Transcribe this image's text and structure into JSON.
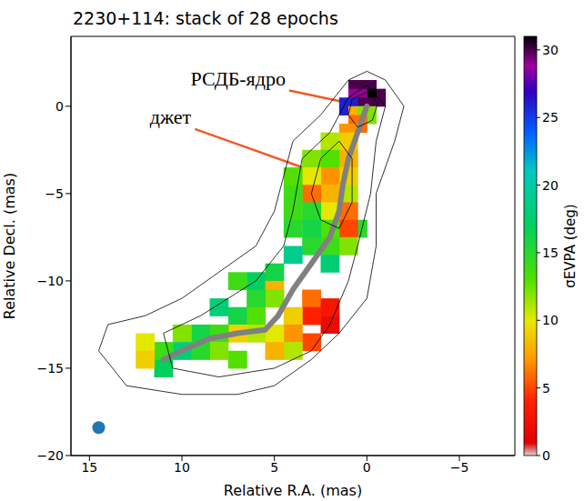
{
  "chart_data": {
    "type": "map",
    "title": "2230+114: stack of 28 epochs",
    "x_label": "Relative R.A. (mas)",
    "y_label": "Relative Decl. (mas)",
    "xlim": [
      16,
      -8
    ],
    "xticks": [
      15,
      10,
      5,
      0,
      {
        "value": -5,
        "label": "−5"
      }
    ],
    "ylim": [
      -20,
      4
    ],
    "yticks": [
      {
        "value": -20,
        "label": "−20"
      },
      {
        "value": -15,
        "label": "−15"
      },
      {
        "value": -10,
        "label": "−10"
      },
      {
        "value": -5,
        "label": "−5"
      },
      0
    ],
    "colorbar": {
      "label": "σEVPA (deg)",
      "range": [
        0,
        31
      ],
      "ticks": [
        0,
        5,
        10,
        15,
        20,
        25,
        30
      ]
    },
    "cell_size": 1,
    "cells": [
      {
        "x": 0,
        "y": 1,
        "value": 30
      },
      {
        "x": 0.5,
        "y": 1,
        "value": 30
      },
      {
        "x": -0.5,
        "y": 0.5,
        "value": 30
      },
      {
        "x": 0,
        "y": 0.5,
        "value": 31
      },
      {
        "x": 0.5,
        "y": 0.5,
        "value": 29
      },
      {
        "x": 0,
        "y": 0,
        "value": 30
      },
      {
        "x": 1,
        "y": 0,
        "value": 26
      },
      {
        "x": 0.5,
        "y": -0.5,
        "value": 8
      },
      {
        "x": 0,
        "y": -0.5,
        "value": 12
      },
      {
        "x": 0.5,
        "y": -1,
        "value": 6
      },
      {
        "x": 1,
        "y": -1.5,
        "value": 7
      },
      {
        "x": 1,
        "y": -2,
        "value": 9
      },
      {
        "x": 2,
        "y": -2,
        "value": 11
      },
      {
        "x": 1,
        "y": -3,
        "value": 8
      },
      {
        "x": 2,
        "y": -3,
        "value": 13
      },
      {
        "x": 3,
        "y": -3,
        "value": 12
      },
      {
        "x": 1,
        "y": -4,
        "value": 9
      },
      {
        "x": 2,
        "y": -4,
        "value": 7
      },
      {
        "x": 3,
        "y": -4,
        "value": 10
      },
      {
        "x": 4,
        "y": -4,
        "value": 13
      },
      {
        "x": 1,
        "y": -5,
        "value": 11
      },
      {
        "x": 2,
        "y": -5,
        "value": 8
      },
      {
        "x": 3,
        "y": -5,
        "value": 6
      },
      {
        "x": 4,
        "y": -5,
        "value": 14
      },
      {
        "x": 1,
        "y": -6,
        "value": 6
      },
      {
        "x": 2,
        "y": -6,
        "value": 10
      },
      {
        "x": 3,
        "y": -6,
        "value": 15
      },
      {
        "x": 4,
        "y": -6,
        "value": 14
      },
      {
        "x": 0.5,
        "y": -7,
        "value": 15
      },
      {
        "x": 1,
        "y": -7,
        "value": 5
      },
      {
        "x": 2,
        "y": -7,
        "value": 13
      },
      {
        "x": 3,
        "y": -7,
        "value": 16
      },
      {
        "x": 4,
        "y": -7,
        "value": 15
      },
      {
        "x": 1,
        "y": -8,
        "value": 12
      },
      {
        "x": 2,
        "y": -8,
        "value": 14
      },
      {
        "x": 3,
        "y": -8,
        "value": 15
      },
      {
        "x": 2,
        "y": -9,
        "value": 18
      },
      {
        "x": 4,
        "y": -8.5,
        "value": 19
      },
      {
        "x": 5,
        "y": -9.5,
        "value": 16
      },
      {
        "x": 6,
        "y": -10,
        "value": 17
      },
      {
        "x": 7,
        "y": -10,
        "value": 14
      },
      {
        "x": 5,
        "y": -10.5,
        "value": 8
      },
      {
        "x": 3,
        "y": -11,
        "value": 6
      },
      {
        "x": 2,
        "y": -11.5,
        "value": 3
      },
      {
        "x": 2,
        "y": -12.5,
        "value": 2
      },
      {
        "x": 3,
        "y": -12,
        "value": 4
      },
      {
        "x": 4,
        "y": -12,
        "value": 9
      },
      {
        "x": 5,
        "y": -11,
        "value": 12
      },
      {
        "x": 6,
        "y": -11,
        "value": 15
      },
      {
        "x": 6,
        "y": -12,
        "value": 13
      },
      {
        "x": 7,
        "y": -12,
        "value": 16
      },
      {
        "x": 8,
        "y": -11.5,
        "value": 18
      },
      {
        "x": 3,
        "y": -13.5,
        "value": 5
      },
      {
        "x": 4,
        "y": -13,
        "value": 7
      },
      {
        "x": 5,
        "y": -13,
        "value": 10
      },
      {
        "x": 6,
        "y": -13,
        "value": 11
      },
      {
        "x": 7,
        "y": -13,
        "value": 9
      },
      {
        "x": 8,
        "y": -13,
        "value": 14
      },
      {
        "x": 9,
        "y": -13,
        "value": 16
      },
      {
        "x": 10,
        "y": -13,
        "value": 12
      },
      {
        "x": 4,
        "y": -14,
        "value": 11
      },
      {
        "x": 5,
        "y": -14,
        "value": 8
      },
      {
        "x": 7,
        "y": -14.5,
        "value": 13
      },
      {
        "x": 8,
        "y": -14,
        "value": 12
      },
      {
        "x": 9,
        "y": -14,
        "value": 15
      },
      {
        "x": 10,
        "y": -14,
        "value": 18
      },
      {
        "x": 11,
        "y": -14,
        "value": 14
      },
      {
        "x": 11,
        "y": -15,
        "value": 17
      },
      {
        "x": 12,
        "y": -13.5,
        "value": 10
      },
      {
        "x": 12,
        "y": -14.5,
        "value": 9
      }
    ],
    "contours": [
      {
        "x": [
          0,
          1,
          2.5,
          4,
          4.5,
          5,
          6,
          8,
          10,
          12,
          14,
          14.5,
          13,
          10,
          7,
          5,
          3,
          1.5,
          0,
          -0.5,
          -0.5,
          -1.5,
          -2,
          -1,
          0
        ],
        "y": [
          2,
          1.5,
          -0.5,
          -2,
          -4,
          -6,
          -8,
          -9.5,
          -11,
          -12,
          -12.5,
          -14,
          -16,
          -16.5,
          -16.5,
          -16,
          -14.5,
          -13,
          -11,
          -8,
          -5,
          -2,
          0,
          1.5,
          2
        ]
      },
      {
        "x": [
          0,
          1,
          2,
          3.5,
          4,
          4.5,
          6,
          9,
          11,
          10.5,
          8,
          5,
          3,
          2,
          1,
          0.5,
          -0.2,
          -0.5,
          -1,
          0
        ],
        "y": [
          1.2,
          0.5,
          -1.5,
          -3,
          -6,
          -8,
          -10,
          -12,
          -13,
          -15,
          -15.5,
          -15,
          -14,
          -12.5,
          -10,
          -8,
          -5,
          -2,
          0,
          1.2
        ]
      },
      {
        "x": [
          1.5,
          2.5,
          3,
          2.5,
          1.5,
          0.8,
          0.8,
          1.5
        ],
        "y": [
          -2,
          -3,
          -5,
          -6.5,
          -7,
          -5.5,
          -3,
          -2
        ]
      },
      {
        "x": [
          0,
          0.8,
          1,
          0.5,
          -0.3,
          -0.6,
          0
        ],
        "y": [
          0.8,
          0.4,
          -0.5,
          -1.2,
          -0.8,
          0.2,
          0.8
        ]
      }
    ],
    "ridge": {
      "x": [
        0,
        0.5,
        1,
        1.3,
        1.5,
        2,
        3,
        4,
        4.8,
        5.5,
        7,
        8.5,
        10,
        11
      ],
      "y": [
        0,
        -1.5,
        -3,
        -4.5,
        -6,
        -7.5,
        -9,
        -10.5,
        -12,
        -12.8,
        -13,
        -13.3,
        -14,
        -14.5
      ]
    },
    "beam": {
      "x": 14.5,
      "y": -18.4
    },
    "annotations": [
      {
        "text": "РСДБ-ядро",
        "x": 4.2,
        "y": 0.9,
        "arrow_x": 0.6,
        "arrow_y": 0.1
      },
      {
        "text": "джет",
        "x": 9.3,
        "y": -1.3,
        "arrow_x": 2.7,
        "arrow_y": -3.8
      }
    ]
  }
}
